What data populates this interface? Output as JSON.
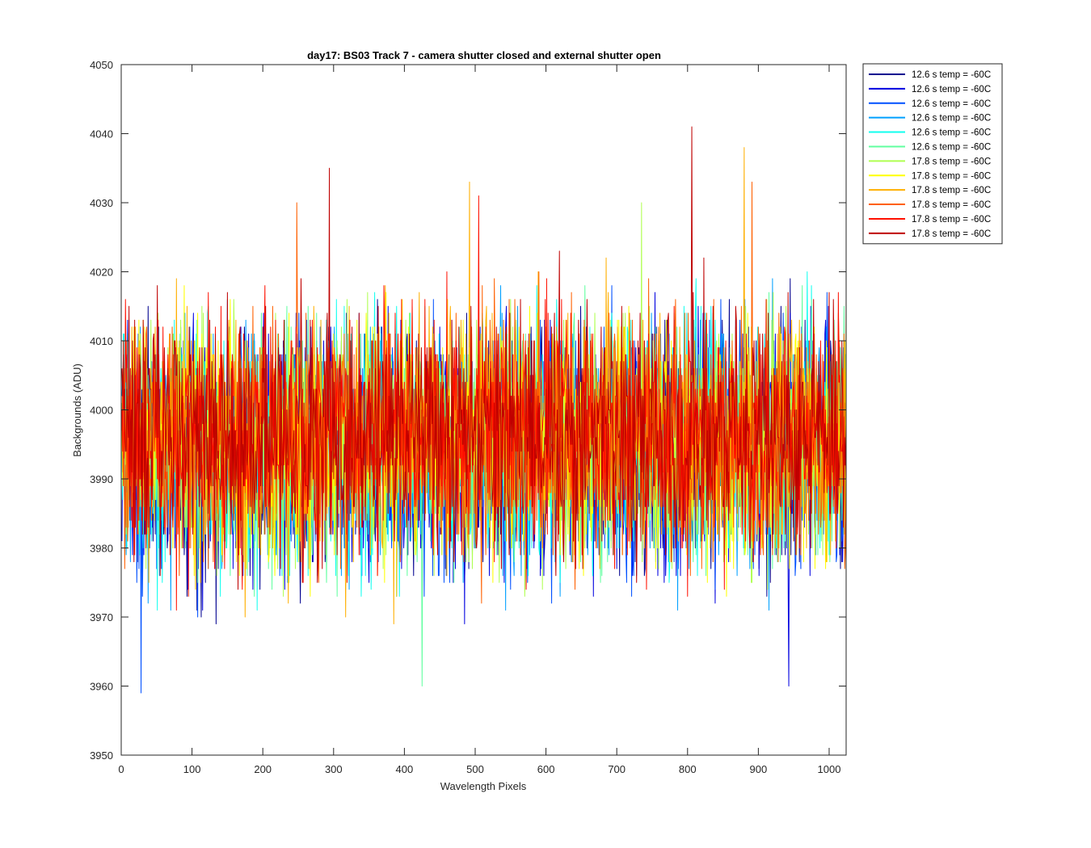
{
  "chart_data": {
    "type": "line",
    "title": "day17: BS03  Track 7 - camera shutter closed and external shutter open",
    "xlabel": "Wavelength Pixels",
    "ylabel": "Backgrounds (ADU)",
    "xlim": [
      0,
      1024
    ],
    "ylim": [
      3950,
      4050
    ],
    "xticks": [
      0,
      100,
      200,
      300,
      400,
      500,
      600,
      700,
      800,
      900,
      1000
    ],
    "yticks": [
      3950,
      3960,
      3970,
      3980,
      3990,
      4000,
      4010,
      4020,
      4030,
      4040,
      4050
    ],
    "legend_position": "outside-top-right",
    "series_summary": {
      "n_points_per_series": 1024,
      "approx_mean": 3995,
      "approx_min": 3959,
      "approx_max": 4041
    },
    "series": [
      {
        "name": "12.6 s temp = -60C",
        "color": "#00008f",
        "mean": 3994.0,
        "sd": 8.5,
        "seed": 11
      },
      {
        "name": "12.6 s temp = -60C",
        "color": "#0000df",
        "mean": 3994.2,
        "sd": 8.5,
        "seed": 23
      },
      {
        "name": "12.6 s temp = -60C",
        "color": "#0050ff",
        "mean": 3994.4,
        "sd": 8.5,
        "seed": 37
      },
      {
        "name": "12.6 s temp = -60C",
        "color": "#00a0ff",
        "mean": 3994.6,
        "sd": 8.5,
        "seed": 41
      },
      {
        "name": "12.6 s temp = -60C",
        "color": "#10ffef",
        "mean": 3994.8,
        "sd": 8.5,
        "seed": 53
      },
      {
        "name": "12.6 s temp = -60C",
        "color": "#60ff9f",
        "mean": 3995.0,
        "sd": 8.5,
        "seed": 67
      },
      {
        "name": "17.8 s temp = -60C",
        "color": "#afff50",
        "mean": 3995.6,
        "sd": 8.5,
        "seed": 71
      },
      {
        "name": "17.8 s temp = -60C",
        "color": "#ffff00",
        "mean": 3995.8,
        "sd": 8.5,
        "seed": 83
      },
      {
        "name": "17.8 s temp = -60C",
        "color": "#ffaf00",
        "mean": 3996.0,
        "sd": 8.5,
        "seed": 97
      },
      {
        "name": "17.8 s temp = -60C",
        "color": "#ff6000",
        "mean": 3996.2,
        "sd": 8.5,
        "seed": 101
      },
      {
        "name": "17.8 s temp = -60C",
        "color": "#ff1000",
        "mean": 3996.4,
        "sd": 8.5,
        "seed": 113
      },
      {
        "name": "17.8 s temp = -60C",
        "color": "#bf0000",
        "mean": 3996.6,
        "sd": 8.5,
        "seed": 127
      }
    ],
    "annotations": [
      {
        "series_index": 11,
        "x": 805,
        "y": 4041
      },
      {
        "series_index": 8,
        "x": 879,
        "y": 4038
      },
      {
        "series_index": 11,
        "x": 293,
        "y": 4035
      },
      {
        "series_index": 8,
        "x": 491,
        "y": 4033
      },
      {
        "series_index": 9,
        "x": 890,
        "y": 4033
      },
      {
        "series_index": 10,
        "x": 504,
        "y": 4031
      },
      {
        "series_index": 9,
        "x": 247,
        "y": 4030
      },
      {
        "series_index": 6,
        "x": 734,
        "y": 4030
      },
      {
        "series_index": 2,
        "x": 27,
        "y": 3959
      },
      {
        "series_index": 1,
        "x": 942,
        "y": 3960
      },
      {
        "series_index": 5,
        "x": 424,
        "y": 3960
      }
    ]
  }
}
